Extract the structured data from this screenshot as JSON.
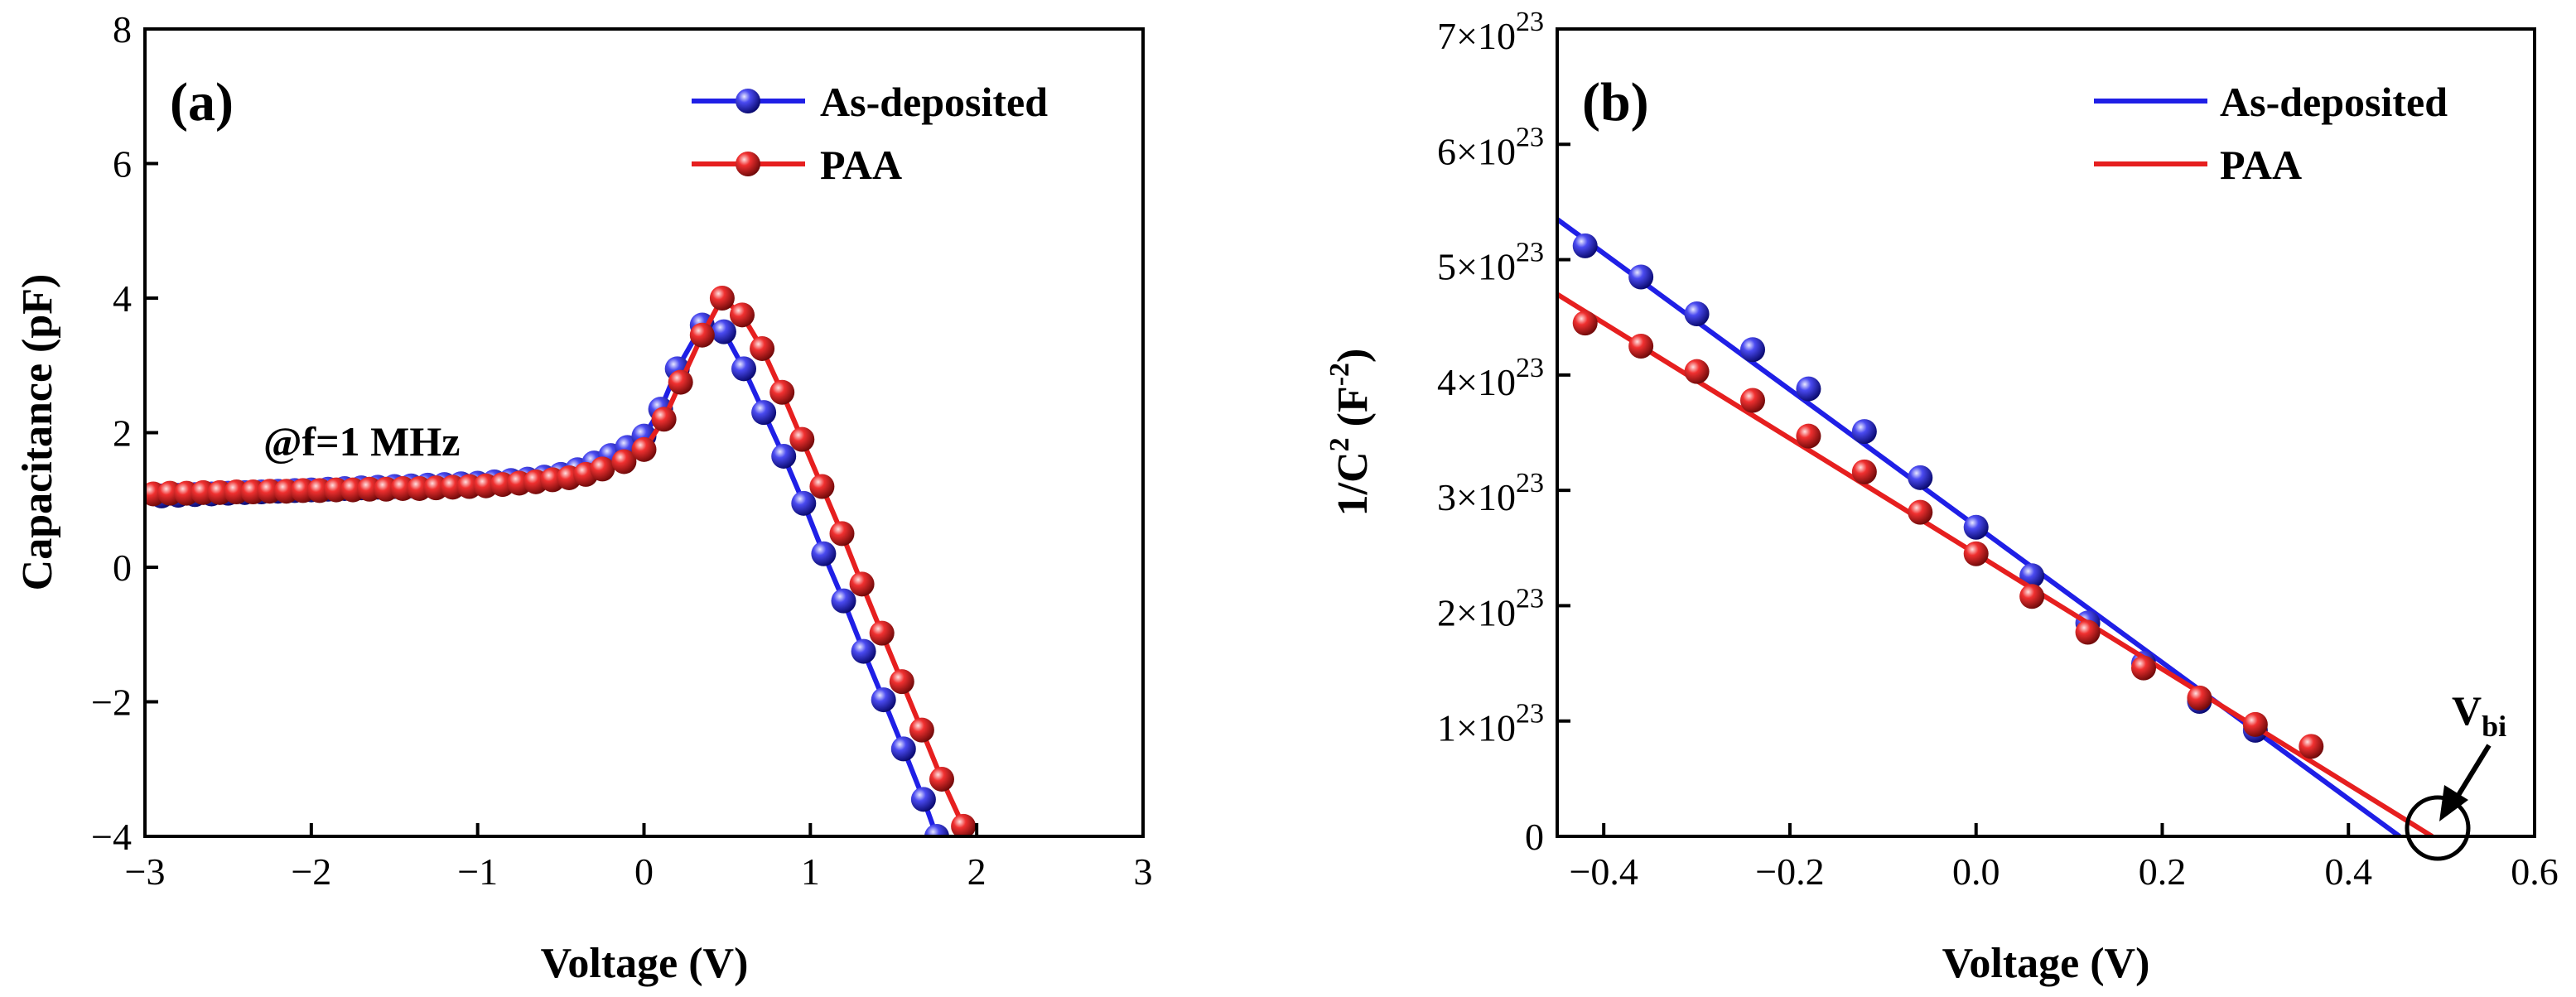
{
  "chart_data": [
    {
      "panel": "(a)",
      "type": "line",
      "xlabel": "Voltage (V)",
      "ylabel": "Capacitance (pF)",
      "xlim": [
        -3,
        3
      ],
      "ylim": [
        -4,
        8
      ],
      "xticks": [
        -3,
        -2,
        -1,
        0,
        1,
        2,
        3
      ],
      "yticks": [
        -4,
        -2,
        0,
        2,
        4,
        6,
        8
      ],
      "xtick_labels": [
        "−3",
        "−2",
        "−1",
        "0",
        "1",
        "2",
        "3"
      ],
      "ytick_labels": [
        "−4",
        "−2",
        "0",
        "2",
        "4",
        "6",
        "8"
      ],
      "annotation": "@f=1 MHz",
      "legend_position": "top-right",
      "series": [
        {
          "name": "As-deposited",
          "color": "#1f1fe6",
          "marker": "sphere",
          "x": [
            -2.9,
            -2.8,
            -2.7,
            -2.6,
            -2.5,
            -2.4,
            -2.3,
            -2.2,
            -2.1,
            -2.0,
            -1.9,
            -1.8,
            -1.7,
            -1.6,
            -1.5,
            -1.4,
            -1.3,
            -1.2,
            -1.1,
            -1.0,
            -0.9,
            -0.8,
            -0.7,
            -0.6,
            -0.5,
            -0.4,
            -0.3,
            -0.2,
            -0.1,
            0.0,
            0.1,
            0.2,
            0.35,
            0.48,
            0.6,
            0.72,
            0.84,
            0.96,
            1.08,
            1.2,
            1.32,
            1.44,
            1.56,
            1.68,
            1.76
          ],
          "y": [
            1.06,
            1.07,
            1.08,
            1.09,
            1.1,
            1.11,
            1.12,
            1.13,
            1.14,
            1.15,
            1.16,
            1.17,
            1.18,
            1.19,
            1.2,
            1.21,
            1.22,
            1.23,
            1.24,
            1.25,
            1.27,
            1.29,
            1.31,
            1.34,
            1.38,
            1.45,
            1.55,
            1.66,
            1.78,
            1.95,
            2.35,
            2.95,
            3.6,
            3.5,
            2.95,
            2.3,
            1.65,
            0.95,
            0.2,
            -0.5,
            -1.25,
            -1.97,
            -2.7,
            -3.45,
            -4.0
          ]
        },
        {
          "name": "PAA",
          "color": "#e61f1f",
          "marker": "sphere",
          "x": [
            -2.95,
            -2.85,
            -2.75,
            -2.65,
            -2.55,
            -2.45,
            -2.35,
            -2.25,
            -2.15,
            -2.05,
            -1.95,
            -1.85,
            -1.75,
            -1.65,
            -1.55,
            -1.45,
            -1.35,
            -1.25,
            -1.15,
            -1.05,
            -0.95,
            -0.85,
            -0.75,
            -0.65,
            -0.55,
            -0.45,
            -0.35,
            -0.25,
            -0.12,
            0.0,
            0.12,
            0.22,
            0.35,
            0.47,
            0.59,
            0.71,
            0.83,
            0.95,
            1.07,
            1.19,
            1.31,
            1.43,
            1.55,
            1.67,
            1.79,
            1.92
          ],
          "y": [
            1.09,
            1.1,
            1.1,
            1.11,
            1.11,
            1.12,
            1.12,
            1.13,
            1.13,
            1.14,
            1.14,
            1.15,
            1.15,
            1.16,
            1.16,
            1.17,
            1.17,
            1.18,
            1.19,
            1.2,
            1.21,
            1.23,
            1.25,
            1.27,
            1.3,
            1.33,
            1.38,
            1.46,
            1.57,
            1.75,
            2.2,
            2.75,
            3.45,
            4.0,
            3.75,
            3.25,
            2.6,
            1.9,
            1.2,
            0.5,
            -0.25,
            -0.98,
            -1.7,
            -2.42,
            -3.15,
            -3.85
          ]
        }
      ]
    },
    {
      "panel": "(b)",
      "type": "scatter",
      "xlabel": "Voltage (V)",
      "ylabel_main": "1/C",
      "ylabel_sup1": "2",
      "ylabel_mid": " (F",
      "ylabel_sup2": "-2",
      "ylabel_end": ")",
      "xlim": [
        -0.45,
        0.6
      ],
      "ylim": [
        0,
        7e+23
      ],
      "xticks": [
        -0.4,
        -0.2,
        0.0,
        0.2,
        0.4,
        0.6
      ],
      "xtick_labels": [
        "−0.4",
        "−0.2",
        "0.0",
        "0.2",
        "0.4",
        "0.6"
      ],
      "yticks": [
        0,
        1e+23,
        2e+23,
        3e+23,
        4e+23,
        5e+23,
        6e+23,
        7e+23
      ],
      "ytick_labels": [
        {
          "base": "0",
          "exp": ""
        },
        {
          "base": "1×10",
          "exp": "23"
        },
        {
          "base": "2×10",
          "exp": "23"
        },
        {
          "base": "3×10",
          "exp": "23"
        },
        {
          "base": "4×10",
          "exp": "23"
        },
        {
          "base": "5×10",
          "exp": "23"
        },
        {
          "base": "6×10",
          "exp": "23"
        },
        {
          "base": "7×10",
          "exp": "23"
        }
      ],
      "annotation": "V",
      "annotation_sub": "bi",
      "legend_position": "top-right",
      "series": [
        {
          "name": "As-deposited",
          "color": "#1f1fe6",
          "marker": "sphere",
          "x": [
            -0.42,
            -0.36,
            -0.3,
            -0.24,
            -0.18,
            -0.12,
            -0.06,
            0.0,
            0.06,
            0.12,
            0.18,
            0.24,
            0.3
          ],
          "y": [
            5.12e+23,
            4.85e+23,
            4.53e+23,
            4.22e+23,
            3.88e+23,
            3.51e+23,
            3.11e+23,
            2.68e+23,
            2.26e+23,
            1.85e+23,
            1.5e+23,
            1.17e+23,
            9.2e+22
          ],
          "fit": {
            "x": [
              -0.45,
              0.455
            ],
            "y": [
              5.35e+23,
              0.0
            ]
          }
        },
        {
          "name": "PAA",
          "color": "#e61f1f",
          "marker": "sphere",
          "x": [
            -0.42,
            -0.36,
            -0.3,
            -0.24,
            -0.18,
            -0.12,
            -0.06,
            0.0,
            0.06,
            0.12,
            0.18,
            0.24,
            0.3,
            0.36
          ],
          "y": [
            4.45e+23,
            4.25e+23,
            4.03e+23,
            3.78e+23,
            3.47e+23,
            3.16e+23,
            2.81e+23,
            2.45e+23,
            2.08e+23,
            1.77e+23,
            1.46e+23,
            1.2e+23,
            9.7e+22,
            7.8e+22
          ],
          "fit": {
            "x": [
              -0.45,
              0.49
            ],
            "y": [
              4.7e+23,
              0.0
            ]
          }
        }
      ]
    }
  ]
}
